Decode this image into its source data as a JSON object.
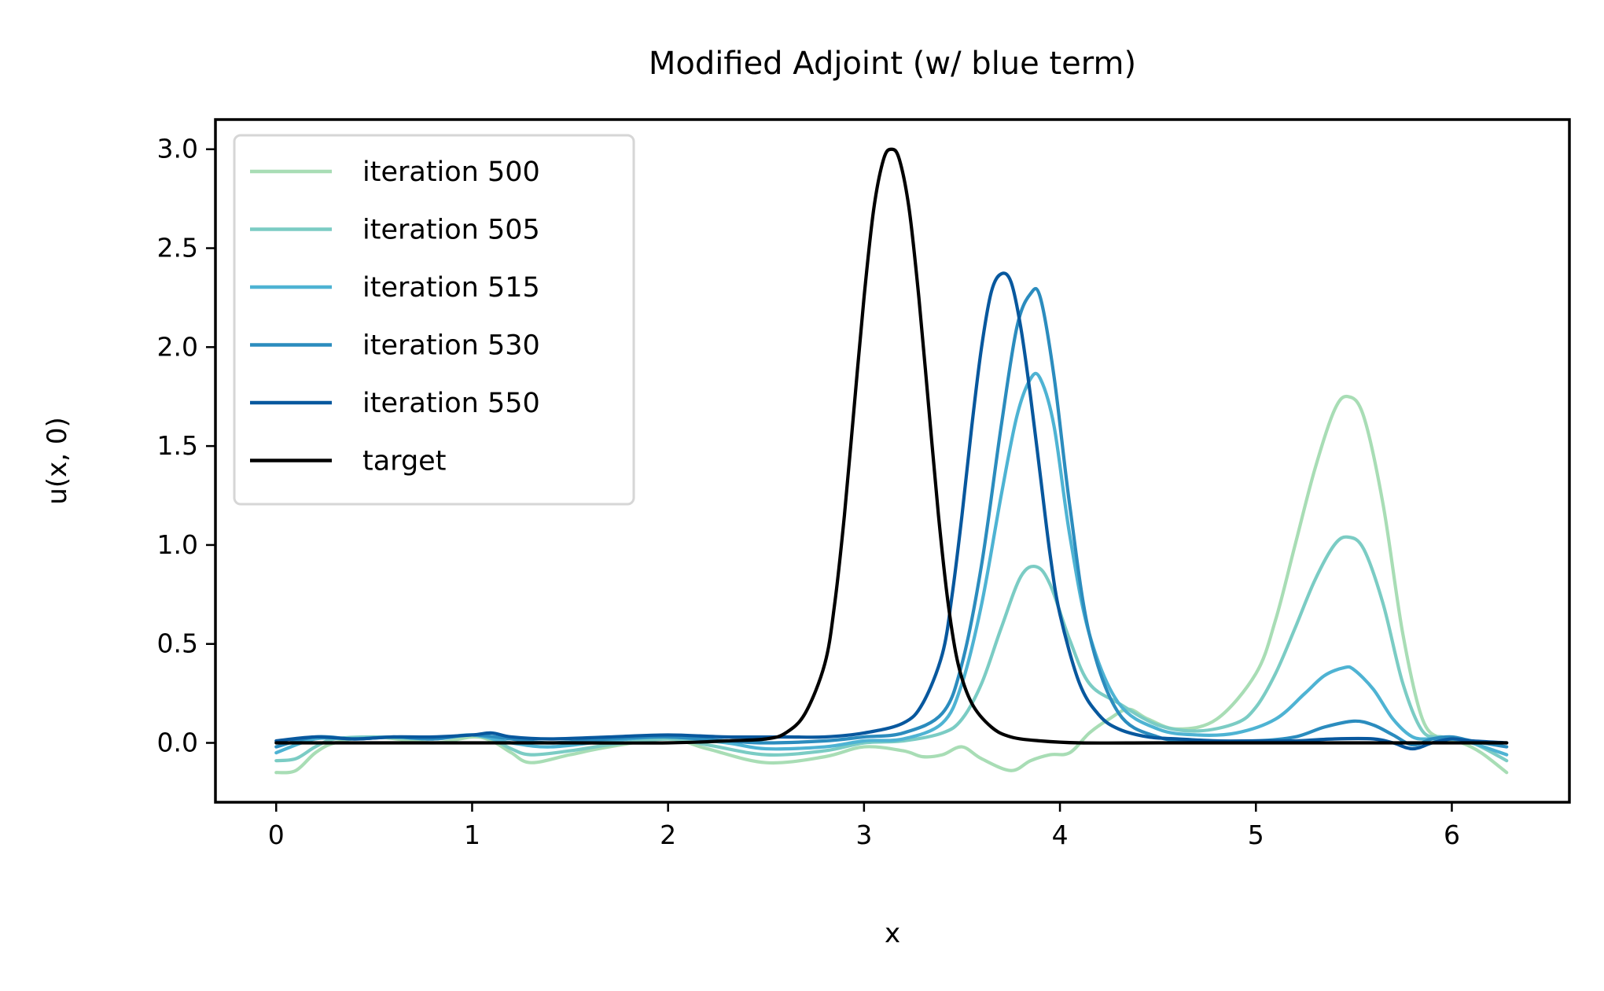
{
  "chart_data": {
    "type": "line",
    "title": "Modified Adjoint (w/ blue term)",
    "xlabel": "x",
    "ylabel": "u(x, 0)",
    "xlim": [
      -0.31,
      6.6
    ],
    "ylim": [
      -0.3,
      3.15
    ],
    "xticks": [
      0,
      1,
      2,
      3,
      4,
      5,
      6
    ],
    "yticks": [
      0.0,
      0.5,
      1.0,
      1.5,
      2.0,
      2.5,
      3.0
    ],
    "xtick_labels": [
      "0",
      "1",
      "2",
      "3",
      "4",
      "5",
      "6"
    ],
    "ytick_labels": [
      "0.0",
      "0.5",
      "1.0",
      "1.5",
      "2.0",
      "2.5",
      "3.0"
    ],
    "grid": false,
    "legend_position": "top-left",
    "series": [
      {
        "name": "iteration 500",
        "color": "#a8ddb5",
        "x": [
          0.0,
          0.1,
          0.2,
          0.3,
          0.5,
          0.8,
          1.0,
          1.1,
          1.2,
          1.3,
          1.5,
          1.7,
          2.0,
          2.2,
          2.5,
          2.8,
          3.0,
          3.2,
          3.3,
          3.4,
          3.5,
          3.6,
          3.75,
          3.85,
          3.95,
          4.05,
          4.15,
          4.25,
          4.35,
          4.45,
          4.6,
          4.8,
          5.0,
          5.1,
          5.2,
          5.3,
          5.4,
          5.47,
          5.55,
          5.65,
          5.75,
          5.85,
          5.95,
          6.05,
          6.15,
          6.28
        ],
        "y": [
          -0.15,
          -0.14,
          -0.05,
          0.0,
          0.03,
          0.0,
          0.03,
          0.01,
          -0.05,
          -0.1,
          -0.06,
          -0.02,
          0.02,
          -0.03,
          -0.1,
          -0.07,
          -0.02,
          -0.04,
          -0.07,
          -0.06,
          -0.02,
          -0.08,
          -0.14,
          -0.09,
          -0.06,
          -0.05,
          0.05,
          0.12,
          0.17,
          0.12,
          0.07,
          0.12,
          0.35,
          0.62,
          1.0,
          1.38,
          1.68,
          1.75,
          1.65,
          1.2,
          0.55,
          0.12,
          0.02,
          0.0,
          -0.05,
          -0.15
        ]
      },
      {
        "name": "iteration 505",
        "color": "#7bccc4",
        "x": [
          0.0,
          0.1,
          0.2,
          0.3,
          0.5,
          0.8,
          1.0,
          1.1,
          1.2,
          1.3,
          1.5,
          1.7,
          2.0,
          2.2,
          2.5,
          2.8,
          3.0,
          3.2,
          3.4,
          3.5,
          3.6,
          3.7,
          3.8,
          3.88,
          3.95,
          4.05,
          4.15,
          4.3,
          4.5,
          4.7,
          4.9,
          5.0,
          5.1,
          5.2,
          5.3,
          5.4,
          5.47,
          5.55,
          5.65,
          5.75,
          5.85,
          5.95,
          6.05,
          6.15,
          6.28
        ],
        "y": [
          -0.09,
          -0.08,
          -0.02,
          0.02,
          0.03,
          0.02,
          0.04,
          0.02,
          -0.03,
          -0.06,
          -0.04,
          -0.01,
          0.02,
          -0.01,
          -0.06,
          -0.04,
          0.0,
          0.01,
          0.05,
          0.12,
          0.3,
          0.58,
          0.84,
          0.89,
          0.8,
          0.52,
          0.3,
          0.2,
          0.09,
          0.06,
          0.1,
          0.18,
          0.35,
          0.58,
          0.82,
          1.0,
          1.04,
          0.98,
          0.7,
          0.3,
          0.06,
          0.03,
          0.02,
          -0.02,
          -0.09
        ]
      },
      {
        "name": "iteration 515",
        "color": "#4eb3d3",
        "x": [
          0.0,
          0.2,
          0.4,
          0.6,
          0.8,
          1.0,
          1.2,
          1.4,
          1.7,
          2.0,
          2.3,
          2.5,
          2.8,
          3.0,
          3.2,
          3.4,
          3.5,
          3.6,
          3.7,
          3.78,
          3.85,
          3.9,
          3.97,
          4.05,
          4.15,
          4.3,
          4.5,
          4.7,
          4.9,
          5.1,
          5.25,
          5.35,
          5.45,
          5.5,
          5.6,
          5.7,
          5.8,
          5.9,
          6.0,
          6.1,
          6.28
        ],
        "y": [
          -0.05,
          0.02,
          0.02,
          0.03,
          0.02,
          0.04,
          0.0,
          -0.02,
          0.01,
          0.03,
          0.0,
          -0.03,
          -0.02,
          0.01,
          0.02,
          0.1,
          0.3,
          0.7,
          1.25,
          1.65,
          1.84,
          1.84,
          1.6,
          1.05,
          0.55,
          0.2,
          0.07,
          0.04,
          0.05,
          0.12,
          0.25,
          0.34,
          0.38,
          0.37,
          0.27,
          0.12,
          0.03,
          0.02,
          0.02,
          0.0,
          -0.06
        ]
      },
      {
        "name": "iteration 530",
        "color": "#2b8cbe",
        "x": [
          0.0,
          0.2,
          0.4,
          0.6,
          0.8,
          1.0,
          1.2,
          1.4,
          1.7,
          2.0,
          2.3,
          2.5,
          2.8,
          3.0,
          3.2,
          3.4,
          3.5,
          3.6,
          3.7,
          3.78,
          3.85,
          3.9,
          3.97,
          4.05,
          4.15,
          4.3,
          4.5,
          4.7,
          5.0,
          5.2,
          5.35,
          5.5,
          5.6,
          5.7,
          5.8,
          5.9,
          6.0,
          6.1,
          6.28
        ],
        "y": [
          -0.02,
          0.03,
          0.02,
          0.03,
          0.02,
          0.04,
          0.02,
          0.0,
          0.02,
          0.03,
          0.01,
          0.0,
          0.01,
          0.03,
          0.05,
          0.15,
          0.4,
          0.9,
          1.6,
          2.1,
          2.27,
          2.25,
          1.85,
          1.2,
          0.55,
          0.15,
          0.03,
          0.01,
          0.01,
          0.03,
          0.08,
          0.11,
          0.09,
          0.04,
          -0.01,
          0.02,
          0.03,
          0.01,
          -0.02
        ]
      },
      {
        "name": "iteration 550",
        "color": "#08589e",
        "x": [
          0.0,
          0.2,
          0.4,
          0.6,
          0.8,
          1.0,
          1.1,
          1.2,
          1.4,
          1.7,
          2.0,
          2.3,
          2.6,
          2.8,
          3.0,
          3.2,
          3.3,
          3.4,
          3.45,
          3.5,
          3.55,
          3.6,
          3.65,
          3.7,
          3.75,
          3.8,
          3.85,
          3.9,
          3.95,
          4.0,
          4.1,
          4.2,
          4.3,
          4.45,
          4.6,
          4.8,
          5.0,
          5.2,
          5.4,
          5.6,
          5.7,
          5.8,
          5.9,
          6.0,
          6.1,
          6.28
        ],
        "y": [
          0.01,
          0.03,
          0.02,
          0.03,
          0.03,
          0.04,
          0.05,
          0.03,
          0.02,
          0.03,
          0.04,
          0.03,
          0.03,
          0.03,
          0.05,
          0.1,
          0.2,
          0.45,
          0.75,
          1.15,
          1.6,
          2.0,
          2.28,
          2.37,
          2.33,
          2.1,
          1.75,
          1.35,
          0.95,
          0.65,
          0.3,
          0.14,
          0.07,
          0.03,
          0.02,
          0.01,
          0.01,
          0.01,
          0.02,
          0.02,
          0.0,
          -0.03,
          0.0,
          0.02,
          0.01,
          0.0
        ]
      },
      {
        "name": "target",
        "color": "#000000",
        "x": [
          0.0,
          0.5,
          1.0,
          1.5,
          2.0,
          2.3,
          2.5,
          2.6,
          2.7,
          2.8,
          2.85,
          2.9,
          2.95,
          3.0,
          3.05,
          3.1,
          3.14,
          3.18,
          3.23,
          3.28,
          3.33,
          3.38,
          3.43,
          3.48,
          3.55,
          3.65,
          3.75,
          3.9,
          4.1,
          4.5,
          5.0,
          5.5,
          6.0,
          6.28
        ],
        "y": [
          0.0,
          0.0,
          0.0,
          0.0,
          0.0,
          0.01,
          0.02,
          0.05,
          0.15,
          0.4,
          0.7,
          1.15,
          1.7,
          2.25,
          2.7,
          2.95,
          3.0,
          2.95,
          2.7,
          2.25,
          1.7,
          1.15,
          0.7,
          0.4,
          0.2,
          0.08,
          0.03,
          0.01,
          0.0,
          0.0,
          0.0,
          0.0,
          0.0,
          0.0
        ]
      }
    ]
  }
}
